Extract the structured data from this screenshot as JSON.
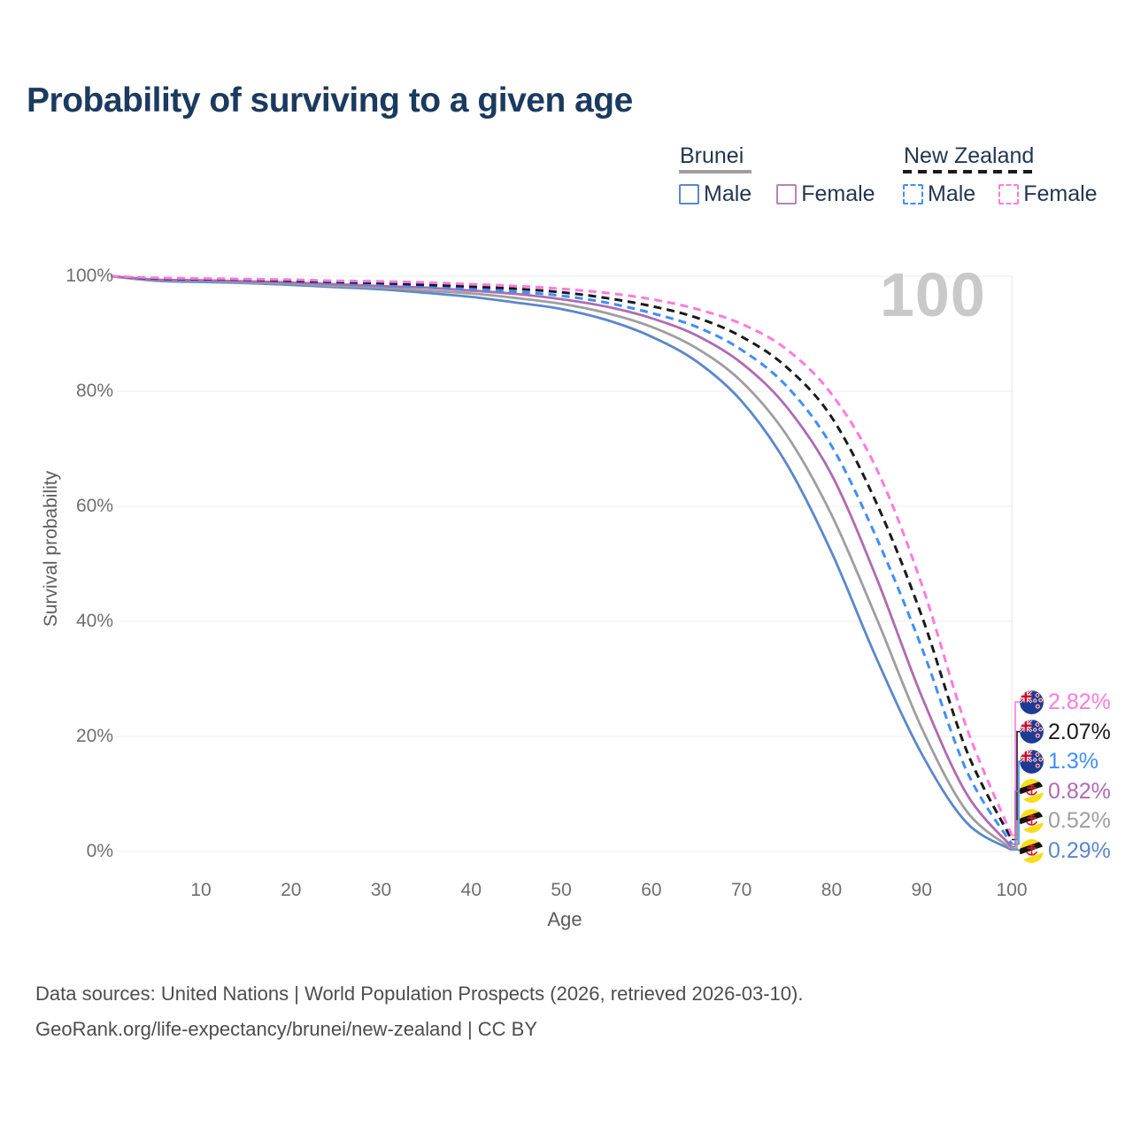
{
  "title": "Probability of surviving to a given age",
  "watermark": "100",
  "legend": {
    "groups": [
      {
        "label": "Brunei",
        "line_color": "#9e9e9e",
        "line_style": "solid",
        "items": [
          {
            "label": "Male",
            "color": "#5b87cc",
            "style": "solid"
          },
          {
            "label": "Female",
            "color": "#b981bd",
            "style": "solid"
          }
        ]
      },
      {
        "label": "New Zealand",
        "line_color": "#1a1a1a",
        "line_style": "dashed",
        "items": [
          {
            "label": "Male",
            "color": "#3f8efc",
            "style": "dashed"
          },
          {
            "label": "Female",
            "color": "#ff7ade",
            "style": "dashed"
          }
        ]
      }
    ]
  },
  "chart_data": {
    "type": "line",
    "title": "Probability of surviving to a given age",
    "xlabel": "Age",
    "ylabel": "Survival probability",
    "xlim": [
      0,
      100
    ],
    "ylim": [
      0,
      100
    ],
    "grid": true,
    "x_ticks": [
      10,
      20,
      30,
      40,
      50,
      60,
      70,
      80,
      90,
      100
    ],
    "y_ticks": [
      {
        "value": 100,
        "label": "100%"
      },
      {
        "value": 80,
        "label": "80%"
      },
      {
        "value": 60,
        "label": "60%"
      },
      {
        "value": 40,
        "label": "40%"
      },
      {
        "value": 20,
        "label": "20%"
      },
      {
        "value": 0,
        "label": "0%"
      }
    ],
    "ages": [
      0,
      5,
      10,
      15,
      20,
      25,
      30,
      35,
      40,
      45,
      50,
      55,
      60,
      65,
      70,
      75,
      80,
      85,
      90,
      95,
      100
    ],
    "series": [
      {
        "name": "New Zealand Female",
        "color": "#ff7ade",
        "dash": true,
        "flag": "new-zealand",
        "end_label": "2.82%",
        "values": [
          100,
          99.7,
          99.6,
          99.5,
          99.4,
          99.2,
          99.1,
          98.9,
          98.6,
          98.3,
          97.8,
          97.1,
          96.0,
          94.3,
          91.7,
          87.3,
          79.5,
          66.5,
          46.5,
          21.5,
          2.82
        ]
      },
      {
        "name": "New Zealand",
        "color": "#1a1a1a",
        "dash": true,
        "flag": "new-zealand",
        "end_label": "2.07%",
        "values": [
          100,
          99.6,
          99.5,
          99.4,
          99.2,
          99.0,
          98.8,
          98.5,
          98.2,
          97.8,
          97.2,
          96.2,
          94.8,
          92.8,
          89.5,
          84.2,
          75.5,
          60.5,
          41.0,
          17.5,
          2.07
        ]
      },
      {
        "name": "New Zealand Male",
        "color": "#3f8efc",
        "dash": true,
        "flag": "new-zealand",
        "end_label": "1.3%",
        "values": [
          100,
          99.5,
          99.4,
          99.3,
          99.1,
          98.8,
          98.5,
          98.2,
          97.8,
          97.3,
          96.6,
          95.4,
          93.6,
          91.2,
          87.2,
          80.9,
          70.5,
          54.5,
          35.5,
          14.0,
          1.3
        ]
      },
      {
        "name": "Brunei Female",
        "color": "#b06ab3",
        "dash": false,
        "flag": "brunei",
        "end_label": "0.82%",
        "values": [
          100,
          99.4,
          99.3,
          99.1,
          98.9,
          98.6,
          98.3,
          98.0,
          97.5,
          96.9,
          96.0,
          94.7,
          92.7,
          89.7,
          84.9,
          77.3,
          65.5,
          47.5,
          27.0,
          10.0,
          0.82
        ]
      },
      {
        "name": "Brunei",
        "color": "#9e9e9e",
        "dash": false,
        "flag": "brunei",
        "end_label": "0.52%",
        "values": [
          100,
          99.3,
          99.2,
          98.9,
          98.7,
          98.3,
          98.0,
          97.5,
          97.0,
          96.2,
          95.2,
          93.6,
          91.2,
          87.5,
          81.7,
          72.4,
          58.5,
          40.5,
          21.5,
          7.0,
          0.52
        ]
      },
      {
        "name": "Brunei Male",
        "color": "#5b87cc",
        "dash": false,
        "flag": "brunei",
        "end_label": "0.29%",
        "values": [
          100,
          99.2,
          99.0,
          98.8,
          98.5,
          98.1,
          97.7,
          97.1,
          96.4,
          95.4,
          94.3,
          92.4,
          89.5,
          85.2,
          78.3,
          67.4,
          52.0,
          33.5,
          17.0,
          5.0,
          0.29
        ]
      }
    ]
  },
  "footer": {
    "line1": "Data sources: United Nations | World Population Prospects (2026, retrieved 2026-03-10).",
    "line2": "GeoRank.org/life-expectancy/brunei/new-zealand | CC BY"
  }
}
